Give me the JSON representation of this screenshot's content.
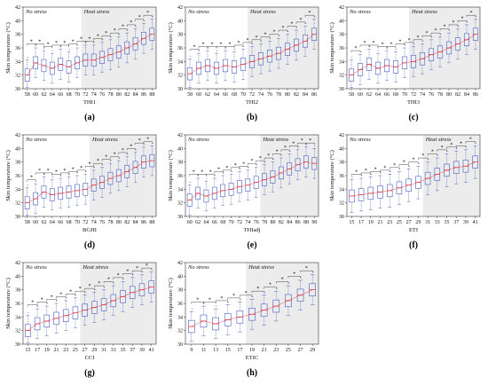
{
  "figure": {
    "panel_letters": [
      "(a)",
      "(b)",
      "(c)",
      "(d)",
      "(e)",
      "(f)",
      "(g)",
      "(h)"
    ]
  },
  "colors": {
    "heat_band": "#ececec",
    "box": "#4a5fc1",
    "median": "#e8232a",
    "mean_line": "#e8232a",
    "outlier": "#3a4fb0",
    "axis": "#333333"
  },
  "chart_data": [
    {
      "panel": "(a)",
      "type": "box",
      "xlabel": "THI1",
      "ylabel": "Skin temperature (°C)",
      "ylim": [
        30,
        42
      ],
      "yticks": [
        30,
        32,
        34,
        36,
        38,
        40,
        42
      ],
      "x": [
        58,
        60,
        62,
        64,
        66,
        68,
        70,
        72,
        74,
        76,
        78,
        80,
        82,
        84,
        86,
        88
      ],
      "xtick_labels": [
        "58",
        "60",
        "62",
        "64",
        "66",
        "68",
        "70",
        "72",
        "74",
        "76",
        "78",
        "80",
        "82",
        "84",
        "86",
        "88"
      ],
      "medians": [
        32.0,
        33.8,
        33.4,
        33.0,
        33.6,
        33.2,
        33.8,
        34.2,
        34.2,
        34.6,
        35.0,
        35.4,
        36.0,
        36.6,
        37.4,
        38.0
      ],
      "iqr_half": 0.9,
      "whisker_half": 2.2,
      "region_labels": {
        "left": "No stress",
        "right": "Heat stress"
      },
      "heat_start": 72
    },
    {
      "panel": "(b)",
      "type": "box",
      "xlabel": "THI2",
      "ylabel": "Skin temperature (°C)",
      "ylim": [
        30,
        42
      ],
      "yticks": [
        30,
        32,
        34,
        36,
        38,
        40,
        42
      ],
      "x": [
        58,
        60,
        62,
        64,
        66,
        68,
        70,
        72,
        74,
        76,
        78,
        80,
        82,
        84,
        86
      ],
      "xtick_labels": [
        "58",
        "60",
        "62",
        "64",
        "66",
        "68",
        "70",
        "72",
        "74",
        "76",
        "78",
        "80",
        "82",
        "84",
        "86"
      ],
      "medians": [
        32.2,
        33.0,
        33.4,
        33.0,
        33.4,
        33.2,
        33.6,
        34.0,
        34.4,
        34.8,
        35.2,
        35.8,
        36.4,
        37.0,
        38.0
      ],
      "iqr_half": 0.9,
      "whisker_half": 2.2,
      "region_labels": {
        "left": "No stress",
        "right": "Heat stress"
      },
      "heat_start": 72
    },
    {
      "panel": "(c)",
      "type": "box",
      "xlabel": "THI3",
      "ylabel": "Skin temperature (°C)",
      "ylim": [
        30,
        42
      ],
      "yticks": [
        30,
        32,
        34,
        36,
        38,
        40,
        42
      ],
      "x": [
        58,
        60,
        62,
        64,
        66,
        68,
        70,
        72,
        74,
        76,
        78,
        80,
        82,
        84,
        86
      ],
      "xtick_labels": [
        "58",
        "60",
        "62",
        "64",
        "66",
        "68",
        "70",
        "72",
        "74",
        "76",
        "78",
        "80",
        "82",
        "84",
        "86"
      ],
      "medians": [
        32.0,
        32.8,
        33.6,
        33.0,
        33.4,
        33.2,
        33.8,
        34.0,
        34.4,
        35.0,
        35.4,
        36.0,
        36.6,
        37.2,
        38.0
      ],
      "iqr_half": 0.9,
      "whisker_half": 2.2,
      "region_labels": {
        "left": "No stress",
        "right": "Heat stress"
      },
      "heat_start": 72
    },
    {
      "panel": "(d)",
      "type": "box",
      "xlabel": "BGHI",
      "ylabel": "Skin temperature (°C)",
      "ylim": [
        30,
        42
      ],
      "yticks": [
        30,
        32,
        34,
        36,
        38,
        40,
        42
      ],
      "x": [
        58,
        60,
        62,
        64,
        66,
        68,
        70,
        72,
        74,
        76,
        78,
        80,
        82,
        84,
        86,
        88
      ],
      "xtick_labels": [
        "58",
        "60",
        "62",
        "64",
        "66",
        "68",
        "70",
        "72",
        "74",
        "76",
        "78",
        "80",
        "82",
        "84",
        "86",
        "88"
      ],
      "medians": [
        32.0,
        32.6,
        33.6,
        33.2,
        33.4,
        33.6,
        33.8,
        34.0,
        34.6,
        35.0,
        35.6,
        36.0,
        36.6,
        37.2,
        38.0,
        38.2
      ],
      "iqr_half": 0.9,
      "whisker_half": 2.2,
      "region_labels": {
        "left": "No stress",
        "right": "Heat stress"
      },
      "heat_start": 74
    },
    {
      "panel": "(e)",
      "type": "box",
      "xlabel": "THIadj",
      "ylabel": "Skin temperature (°C)",
      "ylim": [
        30,
        42
      ],
      "yticks": [
        30,
        32,
        34,
        36,
        38,
        40,
        42
      ],
      "x": [
        60,
        62,
        64,
        66,
        68,
        70,
        72,
        74,
        76,
        78,
        80,
        82,
        84,
        86,
        88,
        90
      ],
      "xtick_labels": [
        "60",
        "62",
        "64",
        "66",
        "68",
        "70",
        "72",
        "74",
        "76",
        "78",
        "80",
        "82",
        "84",
        "86",
        "88",
        "90"
      ],
      "medians": [
        32.4,
        33.4,
        33.0,
        33.4,
        33.8,
        34.0,
        34.4,
        34.6,
        35.0,
        35.4,
        35.8,
        36.4,
        37.0,
        37.6,
        38.0,
        37.8
      ],
      "iqr_half": 0.9,
      "whisker_half": 2.2,
      "region_labels": {
        "left": "No stress",
        "right": "Heat stress"
      },
      "heat_start": 78
    },
    {
      "panel": "(f)",
      "type": "box",
      "xlabel": "ETI",
      "ylabel": "Skin temperature (°C)",
      "ylim": [
        30,
        42
      ],
      "yticks": [
        30,
        32,
        34,
        36,
        38,
        40,
        42
      ],
      "x": [
        15,
        17,
        19,
        21,
        23,
        25,
        27,
        29,
        31,
        33,
        35,
        37,
        39,
        41
      ],
      "xtick_labels": [
        "15",
        "17",
        "19",
        "21",
        "23",
        "25",
        "27",
        "29",
        "31",
        "33",
        "35",
        "37",
        "39",
        "41"
      ],
      "medians": [
        33.0,
        33.2,
        33.4,
        33.6,
        33.8,
        34.2,
        34.6,
        35.0,
        35.6,
        36.2,
        36.8,
        37.2,
        37.4,
        38.0
      ],
      "iqr_half": 0.9,
      "whisker_half": 2.4,
      "region_labels": {
        "left": "No stress",
        "right": "Heat stress"
      },
      "heat_start": 31
    },
    {
      "panel": "(g)",
      "type": "box",
      "xlabel": "CCI",
      "ylabel": "Skin temperature (°C)",
      "ylim": [
        30,
        42
      ],
      "yticks": [
        30,
        32,
        34,
        36,
        38,
        40,
        42
      ],
      "x": [
        15,
        17,
        19,
        21,
        23,
        25,
        27,
        29,
        31,
        33,
        35,
        37,
        39,
        41
      ],
      "xtick_labels": [
        "15",
        "17",
        "19",
        "21",
        "23",
        "25",
        "27",
        "29",
        "31",
        "33",
        "35",
        "37",
        "39",
        "41"
      ],
      "medians": [
        32.0,
        33.0,
        33.4,
        33.8,
        34.2,
        34.6,
        35.0,
        35.4,
        35.8,
        36.4,
        37.0,
        37.6,
        38.0,
        38.4
      ],
      "iqr_half": 0.9,
      "whisker_half": 2.2,
      "region_labels": {
        "left": "No stress",
        "right": "Heat stress"
      },
      "heat_start": 27
    },
    {
      "panel": "(h)",
      "type": "box",
      "xlabel": "ETIC",
      "ylabel": "Skin temperature (°C)",
      "ylim": [
        30,
        42
      ],
      "yticks": [
        30,
        32,
        34,
        36,
        38,
        40,
        42
      ],
      "x": [
        9,
        11,
        13,
        15,
        17,
        19,
        21,
        23,
        25,
        27,
        29
      ],
      "xtick_labels": [
        "9",
        "11",
        "13",
        "15",
        "17",
        "19",
        "21",
        "23",
        "25",
        "27",
        "29"
      ],
      "medians": [
        32.6,
        33.4,
        33.0,
        33.6,
        34.0,
        34.4,
        35.0,
        35.6,
        36.4,
        37.2,
        38.0
      ],
      "iqr_half": 0.9,
      "whisker_half": 2.2,
      "region_labels": {
        "left": "No stress",
        "right": "Heat stress"
      },
      "heat_start": 19
    }
  ]
}
